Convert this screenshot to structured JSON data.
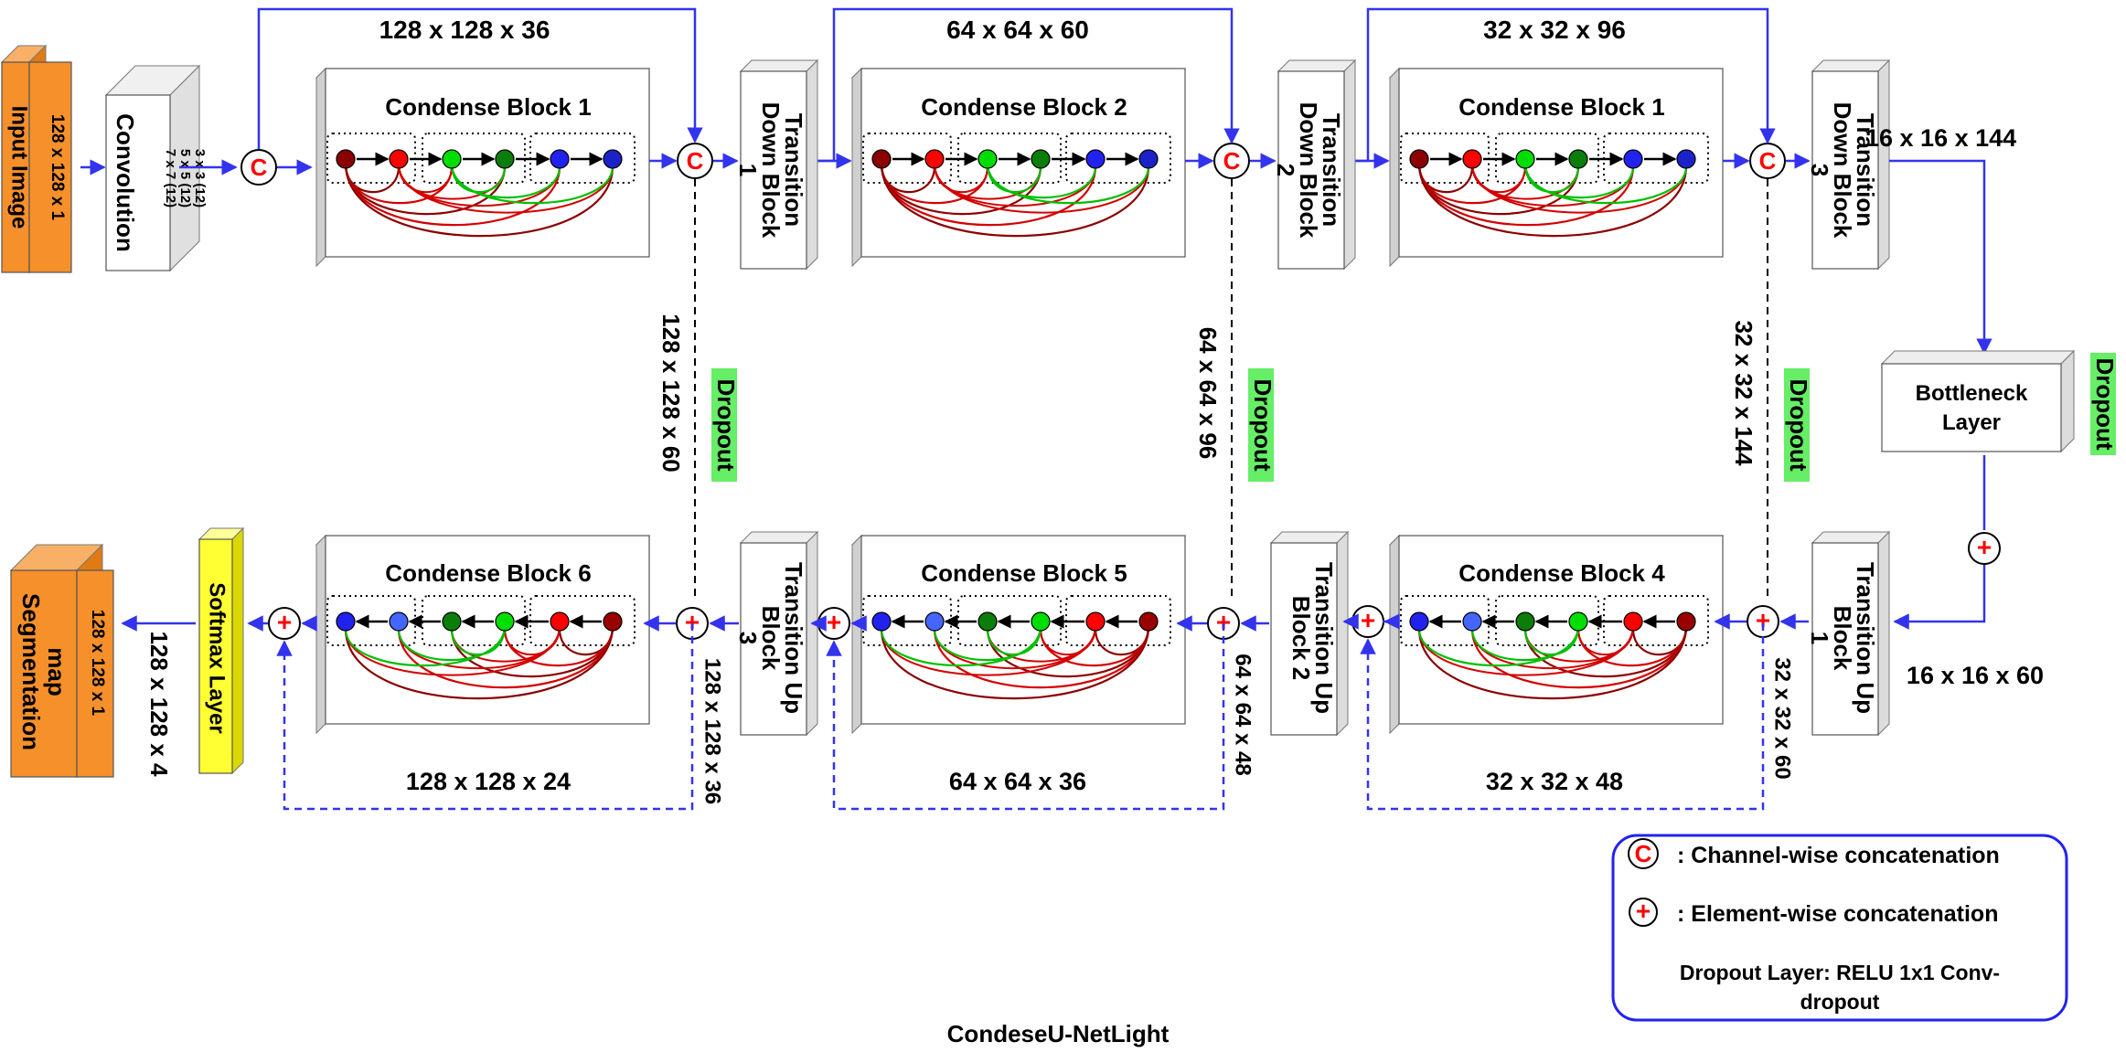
{
  "title": "CondeseU-NetLight",
  "input": {
    "label": "Input Image",
    "size": "128 x 128 x 1"
  },
  "convolution": {
    "label": "Convolution",
    "kernels": [
      "3 x 3 (12)",
      "5 x 5 (12)",
      "7 x 7 (12)"
    ]
  },
  "encoder_blocks": [
    "Condense Block 1",
    "Condense Block 2",
    "Condense Block 1"
  ],
  "decoder_blocks": [
    "Condense Block 6",
    "Condense Block 5",
    "Condense Block 4"
  ],
  "transition_down": [
    [
      "Transition",
      "Down Block",
      "1"
    ],
    [
      "Transition",
      "Down Block",
      "2"
    ],
    [
      "Transition",
      "Down Block",
      "3"
    ]
  ],
  "transition_up": [
    [
      "Transition Up",
      "Block",
      "3"
    ],
    [
      "Transition Up",
      "Block 2"
    ],
    [
      "Transition Up",
      "Block",
      "1"
    ]
  ],
  "bottleneck": [
    "Bottleneck",
    "Layer"
  ],
  "softmax": "Softmax Layer",
  "output": {
    "label_lines": [
      "Segmentation",
      "map"
    ],
    "size": "128 x 128 x 1"
  },
  "dropout": "Dropout",
  "skip_dims_top": [
    "128 x 128 x 36",
    "64 x 64 x 60",
    "32 x 32 x 96"
  ],
  "skip_dims_vertical": [
    "128 x 128 x 60",
    "64 x 64 x 96",
    "32 x 32 x 144"
  ],
  "bottom_dims": [
    "128 x 128 x 24",
    "64 x 64 x 36",
    "32 x 32 x 48"
  ],
  "upconcat_dims": [
    "128 x 128 x 36",
    "64 x 64 x 48",
    "32 x 32 x 60"
  ],
  "td3_out": "16 x 16 x 144",
  "tu1_in": "16 x 16 x 60",
  "output_dim": "128 x 128 x 4",
  "legend": {
    "c_symbol": "C",
    "plus_symbol": "+",
    "channel": ": Channel-wise concatenation",
    "element": ": Element-wise concatenation",
    "dropout_lines": [
      "Dropout Layer: RELU 1x1 Conv-",
      "dropout"
    ]
  },
  "colors": {
    "arrow": "#3333ee",
    "red": "#ff0000",
    "dark_red": "#8b0000",
    "green": "#00dd00",
    "dark_green": "#0a7d0a",
    "blue": "#2222ee",
    "dark_blue": "#0000aa",
    "orange": "#f5902a",
    "yellow": "#ffff33",
    "dropout_bg": "#66ee66"
  }
}
